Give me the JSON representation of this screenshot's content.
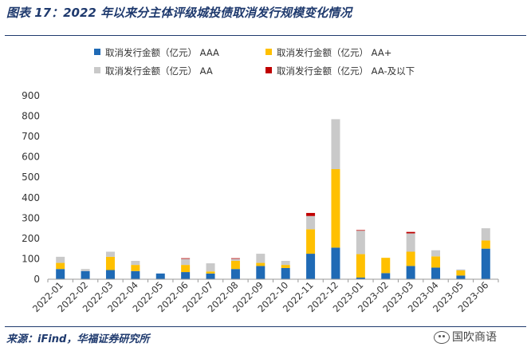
{
  "header": {
    "title": "图表 17：2022 年以来分主体评级城投债取消发行规模变化情况"
  },
  "footer": {
    "source": "来源：iFind，华福证券研究所",
    "watermark": "国吹商语"
  },
  "chart_data": {
    "type": "bar",
    "stacked": true,
    "title": "",
    "xlabel": "",
    "ylabel": "",
    "ylim": [
      0,
      900
    ],
    "yticks": [
      0,
      100,
      200,
      300,
      400,
      500,
      600,
      700,
      800,
      900
    ],
    "grid": false,
    "legend_position": "top",
    "categories": [
      "2022-01",
      "2022-02",
      "2022-03",
      "2022-04",
      "2022-05",
      "2022-06",
      "2022-07",
      "2022-08",
      "2022-09",
      "2022-10",
      "2022-11",
      "2022-12",
      "2023-01",
      "2023-02",
      "2023-03",
      "2023-04",
      "2023-05",
      "2023-06"
    ],
    "series": [
      {
        "name": "取消发行金额（亿元） AAA",
        "color": "#1f6ab5",
        "values": [
          50,
          40,
          45,
          40,
          28,
          35,
          28,
          50,
          65,
          55,
          125,
          155,
          8,
          30,
          65,
          57,
          18,
          150
        ]
      },
      {
        "name": "取消发行金额（亿元） AA+",
        "color": "#ffc000",
        "values": [
          30,
          0,
          65,
          30,
          0,
          35,
          10,
          40,
          15,
          15,
          120,
          385,
          115,
          75,
          70,
          55,
          25,
          40
        ]
      },
      {
        "name": "取消发行金额（亿元） AA",
        "color": "#c9c9c9",
        "values": [
          30,
          10,
          25,
          20,
          0,
          30,
          40,
          10,
          45,
          20,
          65,
          245,
          115,
          0,
          90,
          30,
          5,
          60
        ]
      },
      {
        "name": "取消发行金额（亿元） AA-及以下",
        "color": "#c00000",
        "values": [
          0,
          0,
          0,
          0,
          0,
          3,
          0,
          3,
          0,
          0,
          15,
          0,
          3,
          0,
          7,
          0,
          0,
          0
        ]
      }
    ]
  }
}
